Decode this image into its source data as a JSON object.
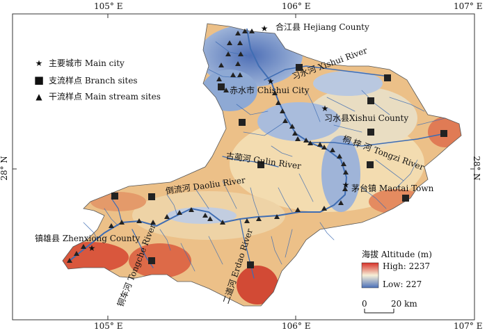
{
  "axes": {
    "top_ticks": [
      "105° E",
      "106° E",
      "107° E"
    ],
    "bottom_ticks": [
      "105° E",
      "106° E",
      "107° E"
    ],
    "left_tick": "28° N",
    "right_tick": "28° N"
  },
  "legend": {
    "items": [
      {
        "symbol": "★",
        "label": "主要城市 Main city"
      },
      {
        "symbol": "■",
        "label": "支流样点 Branch sites"
      },
      {
        "symbol": "▲",
        "label": "干流样点 Main stream sites"
      }
    ]
  },
  "places": {
    "hejiang": "合江县 Hejiang County",
    "chishui": "赤水市 Chishui City",
    "xishui_county": "习水县Xishui County",
    "maotai": "茅台镇 Maotai Town",
    "zhenxiong": "镇雄县 Zhenxiong County"
  },
  "rivers": {
    "xishui": "习水河  Xishui River",
    "tongzi": "桐 梓 河  Tongzi River",
    "gulin": "古蔺河  Gulin River",
    "daoliu": "倒流河  Daoliu River",
    "tongche": "铜车河 Tongche River",
    "erdao": "二道河 Erdao River"
  },
  "altitude_legend": {
    "title": "海拔 Altitude (m)",
    "high": "High: 2237",
    "low": "Low: 227",
    "high_color": "#d73027",
    "mid_color": "#f7f0d8",
    "low_color": "#4a6fb8"
  },
  "scale_bar": {
    "zero": "0",
    "distance": "20 km"
  }
}
